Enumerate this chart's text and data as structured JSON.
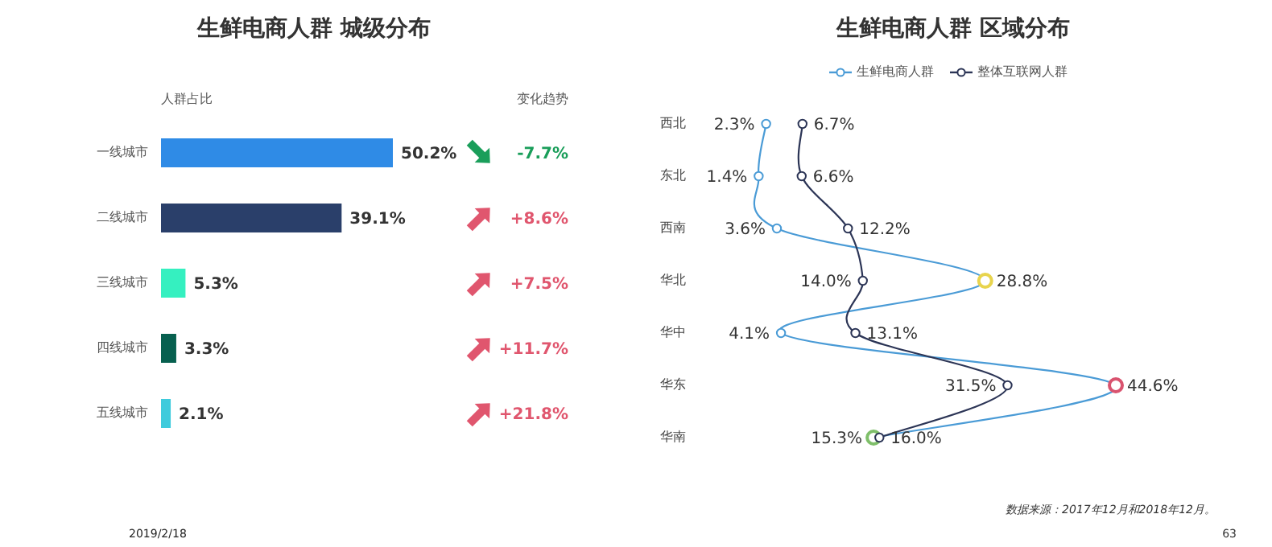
{
  "chart_data": [
    {
      "type": "bar",
      "title": "生鲜电商人群  城级分布",
      "xlabel": "人群占比",
      "orientation": "horizontal",
      "categories": [
        "一线城市",
        "二线城市",
        "三线城市",
        "四线城市",
        "五线城市"
      ],
      "values": [
        50.2,
        39.1,
        5.3,
        3.3,
        2.1
      ],
      "value_labels": [
        "50.2%",
        "39.1%",
        "5.3%",
        "3.3%",
        "2.1%"
      ],
      "colors": [
        "#2f8be6",
        "#2a3f6a",
        "#35f0c0",
        "#07604f",
        "#3fcbdc"
      ],
      "annotations": [
        "变化趋势",
        "-7.7%",
        "+8.6%",
        "+7.5%",
        "+11.7%",
        "+21.8%"
      ]
    },
    {
      "type": "line",
      "title": "生鲜电商人群  区域分布",
      "orientation": "horizontal",
      "legend": "top",
      "marker": "circle",
      "categories": [
        "西北",
        "东北",
        "西南",
        "华北",
        "华中",
        "华东",
        "华南"
      ],
      "series": [
        {
          "name": "生鲜电商人群",
          "color": "#4a9bd6",
          "values": [
            2.3,
            1.4,
            3.6,
            28.8,
            4.1,
            44.6,
            15.3
          ],
          "value_labels": [
            "2.3%",
            "1.4%",
            "3.6%",
            "28.8%",
            "4.1%",
            "44.6%",
            "15.3%"
          ],
          "colors": [
            "#4a9bd6",
            "#4a9bd6",
            "#4a9bd6",
            "#e8d44d",
            "#4a9bd6",
            "#d9536f",
            "#7fbf6a"
          ]
        },
        {
          "name": "整体互联网人群",
          "color": "#2c3556",
          "values": [
            6.7,
            6.6,
            12.2,
            14.0,
            13.1,
            31.5,
            16.0
          ],
          "value_labels": [
            "6.7%",
            "6.6%",
            "12.2%",
            "14.0%",
            "13.1%",
            "31.5%",
            "16.0%"
          ]
        }
      ],
      "annotations": [
        "数据来源：2017年12月和2018年12月。",
        "2019/2/18",
        "63"
      ]
    }
  ]
}
